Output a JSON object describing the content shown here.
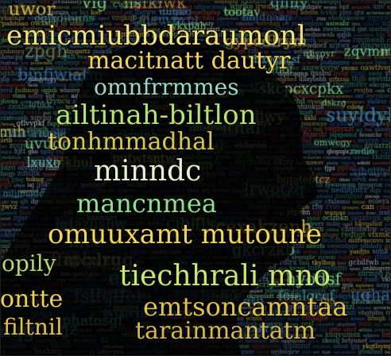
{
  "image": {
    "description_words": [
      {
        "text": "emicmiubbdaraumonl",
        "color": "#f4e27a"
      },
      {
        "text": "macitnatt dautyr",
        "color": "#f3d45c"
      },
      {
        "text": "omnfrrmmes",
        "color": "#9fd7c7"
      },
      {
        "text": "ailtinah-biltlon",
        "color": "#b6e36a"
      },
      {
        "text": "tonhmmadhal",
        "color": "#d9c84f"
      },
      {
        "text": "minndc",
        "color": "#e9f0d0"
      },
      {
        "text": "mancnmea",
        "color": "#8fe08a"
      },
      {
        "text": "omuuxamt mutoune",
        "color": "#f2d55a"
      },
      {
        "text": "tiechhrali mno",
        "color": "#c9e86e"
      },
      {
        "text": "emtsoncamntaa",
        "color": "#e4c24a"
      },
      {
        "text": "tarainmantatm",
        "color": "#d6b84c"
      },
      {
        "text": "ontte",
        "color": "#f0cf55"
      },
      {
        "text": "filtnil",
        "color": "#e6c04a"
      },
      {
        "text": "opily",
        "color": "#b7d86a"
      }
    ],
    "palette": {
      "background": "#05080c",
      "silhouette": "#000000",
      "yellow": "#f3d45c",
      "green": "#8fe08a",
      "teal": "#56b8a6",
      "blue": "#3f7fc2",
      "red": "#c04a3a"
    }
  }
}
